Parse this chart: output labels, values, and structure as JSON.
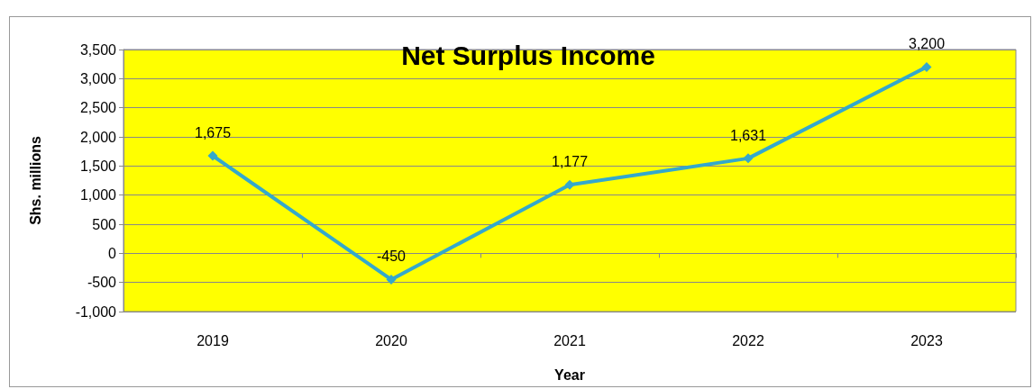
{
  "chart_data": {
    "type": "line",
    "title": "Net Surplus Income",
    "xlabel": "Year",
    "ylabel": "Shs. millions",
    "categories": [
      "2019",
      "2020",
      "2021",
      "2022",
      "2023"
    ],
    "series": [
      {
        "color": "#34a8cc",
        "values": [
          1675,
          -450,
          1177,
          1631,
          3200
        ]
      }
    ],
    "ylim": [
      -1000,
      3500
    ],
    "yticks": [
      {
        "value": -1000,
        "label": "-1,000"
      },
      {
        "value": -500,
        "label": "-500"
      },
      0,
      500,
      {
        "value": 1000,
        "label": "1,000"
      },
      {
        "value": 1500,
        "label": "1,500"
      },
      {
        "value": 2000,
        "label": "2,000"
      },
      {
        "value": 2500,
        "label": "2,500"
      },
      {
        "value": 3000,
        "label": "3,000"
      },
      {
        "value": 3500,
        "label": "3,500"
      }
    ],
    "grid": "y",
    "marker": "diamond",
    "line_style": "solid",
    "value_labels": [
      [
        "1,675",
        "-450",
        "1,177",
        "1,631",
        "3,200"
      ]
    ]
  }
}
